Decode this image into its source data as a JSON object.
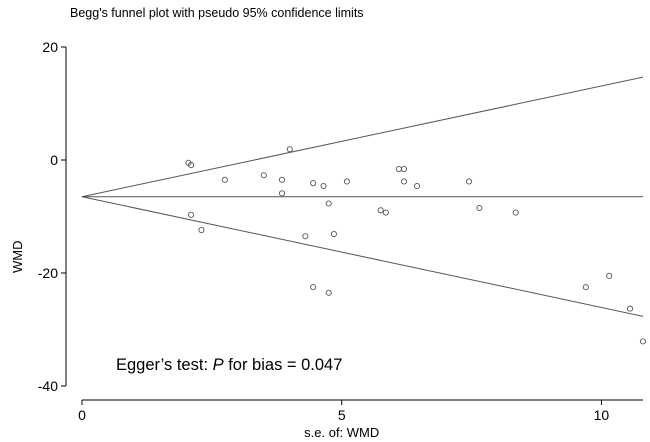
{
  "chart_data": {
    "type": "scatter",
    "title": "Begg's funnel plot with pseudo 95% confidence limits",
    "xlabel": "s.e. of: WMD",
    "ylabel": "WMD",
    "xlim": [
      0,
      10.8
    ],
    "ylim": [
      -40,
      20
    ],
    "xticks": [
      0,
      5,
      10
    ],
    "yticks": [
      20,
      0,
      -20,
      -40
    ],
    "pooled_estimate": -6.5,
    "confidence_limits": "pseudo 95%",
    "annotation": {
      "prefix": "Egger’s test: ",
      "italic": "P",
      "suffix": " for bias = 0.047"
    },
    "points": [
      {
        "x": 2.05,
        "y": -0.5
      },
      {
        "x": 2.1,
        "y": -0.9
      },
      {
        "x": 2.1,
        "y": -9.7
      },
      {
        "x": 2.3,
        "y": -12.4
      },
      {
        "x": 2.75,
        "y": -3.5
      },
      {
        "x": 3.5,
        "y": -2.7
      },
      {
        "x": 3.85,
        "y": -3.5
      },
      {
        "x": 3.85,
        "y": -5.9
      },
      {
        "x": 4.0,
        "y": 1.9
      },
      {
        "x": 4.3,
        "y": -13.5
      },
      {
        "x": 4.45,
        "y": -4.1
      },
      {
        "x": 4.45,
        "y": -22.5
      },
      {
        "x": 4.65,
        "y": -4.6
      },
      {
        "x": 4.75,
        "y": -7.7
      },
      {
        "x": 4.75,
        "y": -23.5
      },
      {
        "x": 4.85,
        "y": -13.1
      },
      {
        "x": 5.1,
        "y": -3.8
      },
      {
        "x": 5.75,
        "y": -8.9
      },
      {
        "x": 5.85,
        "y": -9.3
      },
      {
        "x": 6.1,
        "y": -1.6
      },
      {
        "x": 6.2,
        "y": -1.6
      },
      {
        "x": 6.2,
        "y": -3.8
      },
      {
        "x": 6.45,
        "y": -4.6
      },
      {
        "x": 7.45,
        "y": -3.8
      },
      {
        "x": 7.65,
        "y": -8.5
      },
      {
        "x": 8.35,
        "y": -9.3
      },
      {
        "x": 9.7,
        "y": -22.5
      },
      {
        "x": 10.15,
        "y": -20.5
      },
      {
        "x": 10.55,
        "y": -26.3
      },
      {
        "x": 10.8,
        "y": -32.1
      }
    ]
  }
}
